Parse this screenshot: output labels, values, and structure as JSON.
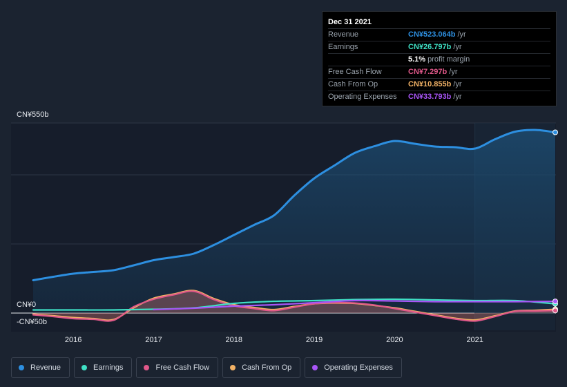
{
  "chart_data": {
    "type": "line",
    "x_start": 2015.5,
    "x_end": 2022.0,
    "ylim": [
      -50,
      550
    ],
    "y_axis_labels": {
      "top": "CN¥550b",
      "zero": "CN¥0",
      "bottom": "-CN¥50b"
    },
    "x_ticks": [
      {
        "value": 2016,
        "label": "2016"
      },
      {
        "value": 2017,
        "label": "2017"
      },
      {
        "value": 2018,
        "label": "2018"
      },
      {
        "value": 2019,
        "label": "2019"
      },
      {
        "value": 2020,
        "label": "2020"
      },
      {
        "value": 2021,
        "label": "2021"
      }
    ],
    "highlight_from": 2021.0,
    "series": [
      {
        "name": "Revenue",
        "key": "revenue",
        "color": "#2d8fe0",
        "fill": true,
        "x": [
          2015.5,
          2015.75,
          2016.0,
          2016.25,
          2016.5,
          2016.75,
          2017.0,
          2017.25,
          2017.5,
          2017.75,
          2018.0,
          2018.25,
          2018.5,
          2018.75,
          2019.0,
          2019.25,
          2019.5,
          2019.75,
          2020.0,
          2020.25,
          2020.5,
          2020.75,
          2021.0,
          2021.25,
          2021.5,
          2021.75,
          2022.0
        ],
        "values": [
          95,
          105,
          114,
          119,
          124,
          138,
          153,
          162,
          172,
          197,
          226,
          255,
          283,
          340,
          390,
          427,
          463,
          483,
          498,
          490,
          482,
          480,
          476,
          503,
          525,
          530,
          523
        ]
      },
      {
        "name": "Earnings",
        "key": "earnings",
        "color": "#3fe0c5",
        "fill": false,
        "x": [
          2015.5,
          2016.0,
          2016.5,
          2017.0,
          2017.5,
          2018.0,
          2018.5,
          2019.0,
          2019.5,
          2020.0,
          2020.5,
          2021.0,
          2021.5,
          2022.0
        ],
        "values": [
          9,
          9,
          9,
          11,
          15,
          28,
          34,
          36,
          39,
          40,
          38,
          36,
          36,
          26.8
        ]
      },
      {
        "name": "Free Cash Flow",
        "key": "fcf",
        "color": "#e0588a",
        "fill": true,
        "x": [
          2015.5,
          2015.75,
          2016.0,
          2016.25,
          2016.5,
          2016.75,
          2017.0,
          2017.25,
          2017.5,
          2017.75,
          2018.0,
          2018.25,
          2018.5,
          2018.75,
          2019.0,
          2019.25,
          2019.5,
          2019.75,
          2020.0,
          2020.25,
          2020.5,
          2020.75,
          2021.0,
          2021.25,
          2021.5,
          2021.75,
          2022.0
        ],
        "values": [
          -5,
          -10,
          -16,
          -18,
          -21,
          18,
          40,
          53,
          63,
          39,
          21,
          13,
          7,
          17,
          27,
          30,
          29,
          23,
          13,
          3,
          -7,
          -17,
          -23,
          -10,
          5,
          6,
          7.3
        ]
      },
      {
        "name": "Cash From Op",
        "key": "cfo",
        "color": "#f2b266",
        "fill": true,
        "x": [
          2015.5,
          2015.75,
          2016.0,
          2016.25,
          2016.5,
          2016.75,
          2017.0,
          2017.25,
          2017.5,
          2017.75,
          2018.0,
          2018.25,
          2018.5,
          2018.75,
          2019.0,
          2019.25,
          2019.5,
          2019.75,
          2020.0,
          2020.25,
          2020.5,
          2020.75,
          2021.0,
          2021.25,
          2021.5,
          2021.75,
          2022.0
        ],
        "values": [
          -3,
          -8,
          -13,
          -16,
          -19,
          15,
          43,
          55,
          65,
          42,
          24,
          16,
          10,
          19,
          27,
          29,
          28,
          22,
          15,
          5,
          -5,
          -15,
          -20,
          -8,
          6,
          8,
          10.9
        ]
      },
      {
        "name": "Operating Expenses",
        "key": "opex",
        "color": "#a855f7",
        "fill": false,
        "x": [
          2015.5,
          2016.0,
          2016.5,
          2017.0,
          2017.5,
          2018.0,
          2018.5,
          2019.0,
          2019.5,
          2020.0,
          2020.5,
          2021.0,
          2021.5,
          2022.0
        ],
        "values": [
          null,
          null,
          null,
          10,
          14,
          20,
          24,
          30,
          36,
          35,
          33,
          33,
          33,
          33.8
        ]
      }
    ]
  },
  "tooltip": {
    "date": "Dec 31 2021",
    "rows": [
      {
        "label": "Revenue",
        "value": "CN¥523.064b",
        "unit": "/yr",
        "color": "#2d8fe0"
      },
      {
        "label": "Earnings",
        "value": "CN¥26.797b",
        "unit": "/yr",
        "color": "#3fe0c5"
      },
      {
        "label": "",
        "value": "5.1%",
        "unit": "profit margin",
        "color": "#ffffff"
      },
      {
        "label": "Free Cash Flow",
        "value": "CN¥7.297b",
        "unit": "/yr",
        "color": "#e0588a"
      },
      {
        "label": "Cash From Op",
        "value": "CN¥10.855b",
        "unit": "/yr",
        "color": "#f2b266"
      },
      {
        "label": "Operating Expenses",
        "value": "CN¥33.793b",
        "unit": "/yr",
        "color": "#a855f7"
      }
    ]
  },
  "legend": [
    {
      "label": "Revenue",
      "color": "#2d8fe0"
    },
    {
      "label": "Earnings",
      "color": "#3fe0c5"
    },
    {
      "label": "Free Cash Flow",
      "color": "#e0588a"
    },
    {
      "label": "Cash From Op",
      "color": "#f2b266"
    },
    {
      "label": "Operating Expenses",
      "color": "#a855f7"
    }
  ]
}
